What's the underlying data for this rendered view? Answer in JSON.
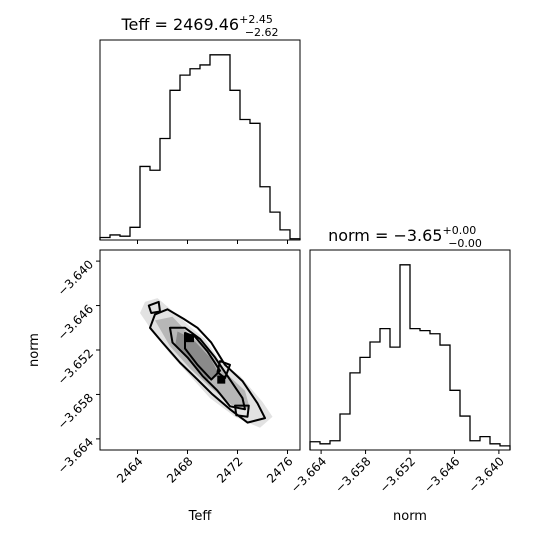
{
  "chart_data": [
    {
      "type": "histogram",
      "panel": "Teff marginal",
      "title": {
        "label": "Teff",
        "median": "2469.46",
        "plus": "+2.45",
        "minus": "−2.62"
      },
      "xlim": [
        2461.0,
        2477.0
      ],
      "xticks": [
        2464,
        2468,
        2472,
        2476
      ],
      "bins": [
        2461.0,
        2461.8,
        2462.6,
        2463.4,
        2464.2,
        2465.0,
        2465.8,
        2466.6,
        2467.4,
        2468.2,
        2469.0,
        2469.8,
        2470.6,
        2471.4,
        2472.2,
        2473.0,
        2473.8,
        2474.6,
        2475.4,
        2476.2,
        2477.0
      ],
      "counts": [
        2,
        4,
        3,
        10,
        58,
        55,
        80,
        118,
        130,
        135,
        138,
        146,
        146,
        118,
        95,
        92,
        42,
        22,
        8,
        1
      ]
    },
    {
      "type": "contour2d",
      "panel": "Teff vs norm",
      "xlabel": "Teff",
      "ylabel": "norm",
      "xlim": [
        2461.0,
        2477.0
      ],
      "ylim": [
        -3.6655,
        -3.6385
      ],
      "xticks": [
        2464,
        2468,
        2472,
        2476
      ],
      "yticks": [
        -3.64,
        -3.646,
        -3.652,
        -3.658,
        -3.664
      ],
      "yticklabels": [
        "−3.640",
        "−3.646",
        "−3.652",
        "−3.658",
        "−3.664"
      ],
      "shade_levels": [
        [
          [
            2464.6,
            -3.6455
          ],
          [
            2465.6,
            -3.645
          ],
          [
            2467.0,
            -3.647
          ],
          [
            2468.3,
            -3.649
          ],
          [
            2469.4,
            -3.6505
          ],
          [
            2470.6,
            -3.6535
          ],
          [
            2472.2,
            -3.6555
          ],
          [
            2474.0,
            -3.659
          ],
          [
            2474.8,
            -3.661
          ],
          [
            2473.8,
            -3.6625
          ],
          [
            2471.8,
            -3.661
          ],
          [
            2469.8,
            -3.6585
          ],
          [
            2468.2,
            -3.6555
          ],
          [
            2466.6,
            -3.6525
          ],
          [
            2465.2,
            -3.6495
          ],
          [
            2464.2,
            -3.647
          ]
        ],
        [
          [
            2465.4,
            -3.648
          ],
          [
            2466.8,
            -3.6475
          ],
          [
            2468.2,
            -3.65
          ],
          [
            2469.6,
            -3.652
          ],
          [
            2471.0,
            -3.655
          ],
          [
            2472.6,
            -3.6575
          ],
          [
            2473.0,
            -3.66
          ],
          [
            2471.6,
            -3.6595
          ],
          [
            2469.8,
            -3.657
          ],
          [
            2468.2,
            -3.6545
          ],
          [
            2466.6,
            -3.6515
          ]
        ],
        [
          [
            2467.2,
            -3.6495
          ],
          [
            2468.4,
            -3.6505
          ],
          [
            2469.8,
            -3.653
          ],
          [
            2470.6,
            -3.6555
          ],
          [
            2469.6,
            -3.656
          ],
          [
            2468.2,
            -3.6535
          ],
          [
            2467.0,
            -3.6515
          ]
        ]
      ],
      "contours": [
        [
          [
            2465.4,
            -3.6472
          ],
          [
            2466.4,
            -3.6465
          ],
          [
            2467.7,
            -3.6478
          ],
          [
            2468.8,
            -3.649
          ],
          [
            2469.9,
            -3.651
          ],
          [
            2471.0,
            -3.654
          ],
          [
            2472.4,
            -3.6562
          ],
          [
            2473.6,
            -3.6592
          ],
          [
            2474.2,
            -3.6612
          ],
          [
            2472.8,
            -3.6618
          ],
          [
            2471.4,
            -3.66
          ],
          [
            2470.0,
            -3.658
          ],
          [
            2468.8,
            -3.656
          ],
          [
            2467.4,
            -3.6537
          ],
          [
            2466.0,
            -3.651
          ],
          [
            2465.0,
            -3.649
          ]
        ],
        [
          [
            2466.6,
            -3.649
          ],
          [
            2467.8,
            -3.649
          ],
          [
            2469.0,
            -3.6505
          ],
          [
            2470.2,
            -3.653
          ],
          [
            2471.2,
            -3.6555
          ],
          [
            2472.4,
            -3.6585
          ],
          [
            2472.6,
            -3.66
          ],
          [
            2471.4,
            -3.6596
          ],
          [
            2470.4,
            -3.6575
          ],
          [
            2469.2,
            -3.6555
          ],
          [
            2468.0,
            -3.653
          ],
          [
            2466.8,
            -3.651
          ]
        ],
        [
          [
            2467.8,
            -3.6497
          ],
          [
            2468.6,
            -3.6502
          ],
          [
            2469.6,
            -3.6522
          ],
          [
            2470.6,
            -3.6548
          ],
          [
            2469.9,
            -3.656
          ],
          [
            2468.8,
            -3.654
          ],
          [
            2467.8,
            -3.6518
          ]
        ],
        [
          [
            2464.9,
            -3.646
          ],
          [
            2465.7,
            -3.6455
          ],
          [
            2465.8,
            -3.6468
          ],
          [
            2465.1,
            -3.647
          ]
        ],
        [
          [
            2470.6,
            -3.6535
          ],
          [
            2471.4,
            -3.654
          ],
          [
            2471.0,
            -3.6558
          ],
          [
            2470.4,
            -3.655
          ]
        ],
        [
          [
            2471.8,
            -3.6595
          ],
          [
            2472.9,
            -3.6595
          ],
          [
            2472.8,
            -3.661
          ],
          [
            2471.9,
            -3.6608
          ]
        ]
      ],
      "dots": [
        [
          2468.2,
          -3.6504
        ],
        [
          2470.7,
          -3.656
        ]
      ]
    },
    {
      "type": "histogram",
      "panel": "norm marginal",
      "title": {
        "label": "norm",
        "median": "−3.65",
        "plus": "+0.00",
        "minus": "−0.00"
      },
      "xlim": [
        -3.6655,
        -3.6385
      ],
      "xticks": [
        -3.664,
        -3.658,
        -3.652,
        -3.646,
        -3.64
      ],
      "xticklabels": [
        "−3.664",
        "−3.658",
        "−3.652",
        "−3.646",
        "−3.640"
      ],
      "xlabel": "norm",
      "bins": [
        -3.6655,
        -3.66415,
        -3.6628,
        -3.66145,
        -3.6601,
        -3.65875,
        -3.6574,
        -3.65605,
        -3.6547,
        -3.65335,
        -3.652,
        -3.65065,
        -3.6493,
        -3.64795,
        -3.6466,
        -3.64525,
        -3.6439,
        -3.64255,
        -3.6412,
        -3.63985,
        -3.6385
      ],
      "counts": [
        8,
        6,
        9,
        35,
        75,
        90,
        105,
        118,
        100,
        180,
        118,
        116,
        113,
        102,
        58,
        33,
        9,
        13,
        6,
        4
      ]
    }
  ]
}
